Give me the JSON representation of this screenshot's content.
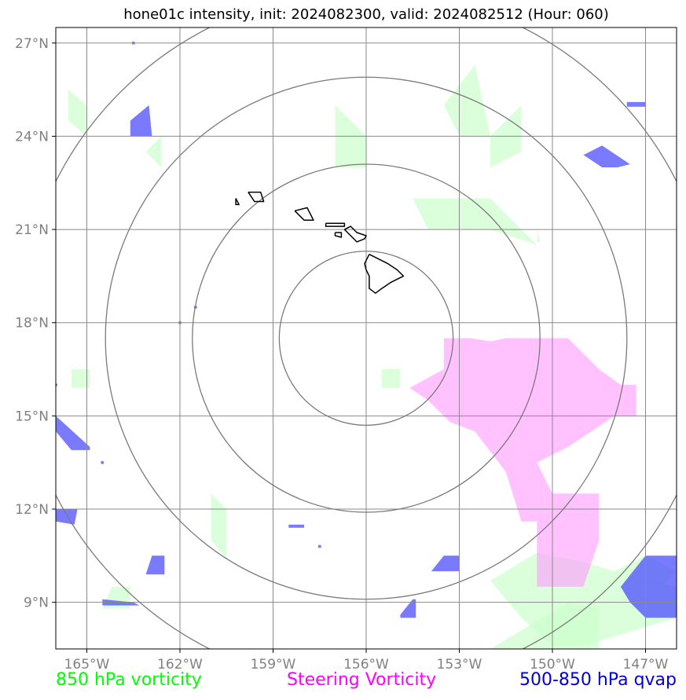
{
  "header": {
    "title": "hone01c intensity, init: 2024082300, valid: 2024082512 (Hour: 060)"
  },
  "map": {
    "lon_range": [
      -166,
      -146
    ],
    "lat_range": [
      7.5,
      27.5
    ],
    "lon_ticks": [
      {
        "value": -165,
        "label": "165°W"
      },
      {
        "value": -162,
        "label": "162°W"
      },
      {
        "value": -159,
        "label": "159°W"
      },
      {
        "value": -156,
        "label": "156°W"
      },
      {
        "value": -153,
        "label": "153°W"
      },
      {
        "value": -150,
        "label": "150°W"
      },
      {
        "value": -147,
        "label": "147°W"
      }
    ],
    "lat_ticks": [
      {
        "value": 27,
        "label": "27°N"
      },
      {
        "value": 24,
        "label": "24°N"
      },
      {
        "value": 21,
        "label": "21°N"
      },
      {
        "value": 18,
        "label": "18°N"
      },
      {
        "value": 15,
        "label": "15°N"
      },
      {
        "value": 12,
        "label": "12°N"
      },
      {
        "value": 9,
        "label": "9°N"
      }
    ],
    "center": {
      "lon": -156,
      "lat": 17.5
    },
    "range_rings_deg": [
      2.8,
      5.6,
      8.4,
      11.2
    ],
    "colors": {
      "vorticity_850": "#ccffcc",
      "steering_vorticity": "#ff99ff",
      "qvap": "#4d4dff",
      "grid": "#8a8a8a",
      "rings": "#7a7a7a",
      "coast": "#000000"
    },
    "fields": {
      "vorticity_850": [
        [
          [
            -165.6,
            25.5
          ],
          [
            -165,
            25
          ],
          [
            -165,
            24
          ],
          [
            -165.6,
            24.5
          ]
        ],
        [
          [
            -163.1,
            23.5
          ],
          [
            -162.6,
            24
          ],
          [
            -162.6,
            23
          ]
        ],
        [
          [
            -157,
            25
          ],
          [
            -156,
            24
          ],
          [
            -156,
            23
          ],
          [
            -157,
            23
          ]
        ],
        [
          [
            -153.5,
            25
          ],
          [
            -152.5,
            26.3
          ],
          [
            -152,
            24
          ],
          [
            -153,
            24
          ]
        ],
        [
          [
            -152,
            24
          ],
          [
            -151,
            25
          ],
          [
            -151,
            23.5
          ],
          [
            -152,
            23
          ]
        ],
        [
          [
            -154.5,
            22
          ],
          [
            -152,
            22
          ],
          [
            -150.5,
            20.5
          ],
          [
            -152,
            21
          ],
          [
            -154,
            21
          ]
        ],
        [
          [
            -165.5,
            16.5
          ],
          [
            -164.9,
            16.5
          ],
          [
            -164.9,
            15.9
          ],
          [
            -165.5,
            15.9
          ]
        ],
        [
          [
            -155.5,
            16.5
          ],
          [
            -154.9,
            16.5
          ],
          [
            -154.9,
            15.9
          ],
          [
            -155.5,
            15.9
          ]
        ],
        [
          [
            -161,
            12.5
          ],
          [
            -160.5,
            12
          ],
          [
            -160.5,
            10.4
          ],
          [
            -161,
            11
          ]
        ],
        [
          [
            -164.2,
            9.5
          ],
          [
            -163.6,
            9.5
          ],
          [
            -163.6,
            8.8
          ],
          [
            -164.5,
            8.8
          ]
        ],
        [
          [
            -152,
            9.7
          ],
          [
            -150.5,
            10.6
          ],
          [
            -149,
            10.3
          ],
          [
            -148,
            10
          ],
          [
            -146,
            9.5
          ],
          [
            -146,
            8.5
          ],
          [
            -149,
            7.6
          ],
          [
            -150,
            7.6
          ],
          [
            -151,
            8.5
          ]
        ],
        [
          [
            -152,
            7.5
          ],
          [
            -149.5,
            9
          ],
          [
            -148.5,
            8.8
          ],
          [
            -148.5,
            7.5
          ]
        ],
        [
          [
            -148,
            10
          ],
          [
            -146.5,
            9.5
          ],
          [
            -146,
            10
          ],
          [
            -147,
            10.5
          ]
        ],
        [
          [
            -150.5,
            21
          ],
          [
            -150.5,
            20.6
          ],
          [
            -150.4,
            20.6
          ]
        ]
      ],
      "steering_vorticity": [
        [
          [
            -150.5,
            17.5
          ],
          [
            -151.5,
            17.5
          ],
          [
            -152,
            17.4
          ],
          [
            -152.6,
            17.5
          ],
          [
            -153.5,
            17.5
          ],
          [
            -153.5,
            16.5
          ],
          [
            -154.6,
            15.9
          ],
          [
            -154,
            15.5
          ],
          [
            -153.3,
            14.8
          ],
          [
            -152.5,
            14.5
          ],
          [
            -151.5,
            13.2
          ],
          [
            -151,
            11.6
          ],
          [
            -150.5,
            11.6
          ],
          [
            -150.5,
            9.5
          ],
          [
            -149,
            9.5
          ],
          [
            -148.5,
            11
          ],
          [
            -148.5,
            12.5
          ],
          [
            -150,
            12.5
          ],
          [
            -150.5,
            13.5
          ],
          [
            -149.5,
            14
          ],
          [
            -148,
            15
          ],
          [
            -147.3,
            15
          ],
          [
            -147.3,
            16
          ],
          [
            -147.8,
            16
          ],
          [
            -148.5,
            16.5
          ],
          [
            -149.5,
            17.5
          ]
        ]
      ],
      "qvap": [
        [
          [
            -163.6,
            24.5
          ],
          [
            -163,
            25
          ],
          [
            -162.9,
            24
          ],
          [
            -163.6,
            24
          ]
        ],
        [
          [
            -166,
            15
          ],
          [
            -164.9,
            14
          ],
          [
            -164.9,
            13.9
          ],
          [
            -165.5,
            13.9
          ],
          [
            -166,
            14.5
          ]
        ],
        [
          [
            -166,
            12
          ],
          [
            -165.3,
            12
          ],
          [
            -165.4,
            11.5
          ],
          [
            -166,
            11.6
          ]
        ],
        [
          [
            -162.9,
            10.5
          ],
          [
            -162.5,
            10.5
          ],
          [
            -162.5,
            9.9
          ],
          [
            -163.1,
            9.9
          ]
        ],
        [
          [
            -164.5,
            9.1
          ],
          [
            -163.5,
            9
          ],
          [
            -163.3,
            8.9
          ],
          [
            -164.5,
            8.9
          ]
        ],
        [
          [
            -149,
            23.4
          ],
          [
            -148.4,
            23.7
          ],
          [
            -147.5,
            23.1
          ],
          [
            -147.9,
            23
          ],
          [
            -148.4,
            23
          ]
        ],
        [
          [
            -147.6,
            25.1
          ],
          [
            -147,
            25.1
          ],
          [
            -147,
            24.95
          ],
          [
            -147.6,
            24.95
          ]
        ],
        [
          [
            -153.5,
            10.5
          ],
          [
            -153,
            10.5
          ],
          [
            -153,
            10
          ],
          [
            -153.9,
            10
          ]
        ],
        [
          [
            -154.5,
            9.1
          ],
          [
            -154.4,
            9.1
          ],
          [
            -154.4,
            8.5
          ],
          [
            -154.9,
            8.5
          ],
          [
            -154.9,
            8.6
          ]
        ],
        [
          [
            -158.5,
            11.5
          ],
          [
            -158,
            11.5
          ],
          [
            -158,
            11.4
          ],
          [
            -158.5,
            11.4
          ]
        ],
        [
          [
            -147,
            10.5
          ],
          [
            -146,
            10.5
          ],
          [
            -146,
            8.5
          ],
          [
            -147,
            8.5
          ],
          [
            -147.5,
            9
          ],
          [
            -147.8,
            9.5
          ]
        ]
      ],
      "qvap_points": [
        [
          -163.5,
          27
        ],
        [
          -161.5,
          18.5
        ],
        [
          -162,
          18
        ],
        [
          -164.5,
          13.5
        ],
        [
          -166,
          16
        ],
        [
          -157.5,
          10.8
        ]
      ]
    },
    "coastlines": [
      [
        [
          -155.9,
          20.2
        ],
        [
          -155.7,
          20.1
        ],
        [
          -155.3,
          19.9
        ],
        [
          -155,
          19.7
        ],
        [
          -154.8,
          19.5
        ],
        [
          -155.2,
          19.3
        ],
        [
          -155.5,
          19.1
        ],
        [
          -155.7,
          18.95
        ],
        [
          -155.9,
          19.1
        ],
        [
          -155.9,
          19.5
        ],
        [
          -156,
          19.7
        ],
        [
          -156.05,
          19.9
        ],
        [
          -155.9,
          20.2
        ]
      ],
      [
        [
          -156.7,
          21
        ],
        [
          -156.5,
          21.1
        ],
        [
          -156.3,
          20.9
        ],
        [
          -156,
          20.8
        ],
        [
          -156.05,
          20.7
        ],
        [
          -156.3,
          20.6
        ],
        [
          -156.5,
          20.8
        ],
        [
          -156.7,
          21
        ]
      ],
      [
        [
          -157.3,
          21.2
        ],
        [
          -156.7,
          21.2
        ],
        [
          -156.7,
          21.1
        ],
        [
          -157.3,
          21.1
        ],
        [
          -157.3,
          21.2
        ]
      ],
      [
        [
          -157,
          20.9
        ],
        [
          -156.8,
          20.9
        ],
        [
          -156.8,
          20.75
        ],
        [
          -157,
          20.8
        ],
        [
          -157,
          20.9
        ]
      ],
      [
        [
          -158.3,
          21.6
        ],
        [
          -157.9,
          21.7
        ],
        [
          -157.7,
          21.3
        ],
        [
          -158,
          21.3
        ],
        [
          -158.1,
          21.4
        ],
        [
          -158.3,
          21.6
        ]
      ],
      [
        [
          -159.8,
          22.2
        ],
        [
          -159.4,
          22.2
        ],
        [
          -159.3,
          21.9
        ],
        [
          -159.6,
          21.9
        ],
        [
          -159.8,
          22.2
        ]
      ],
      [
        [
          -160.2,
          22
        ],
        [
          -160.1,
          21.8
        ],
        [
          -160.2,
          21.8
        ],
        [
          -160.2,
          22
        ]
      ]
    ]
  },
  "legend": {
    "left": {
      "label": "850 hPa vorticity",
      "color": "#00ff00"
    },
    "mid": {
      "label": "Steering Vorticity",
      "color": "#ff00ff"
    },
    "right": {
      "label": "500-850 hPa qvap",
      "color": "#0000dd"
    }
  }
}
